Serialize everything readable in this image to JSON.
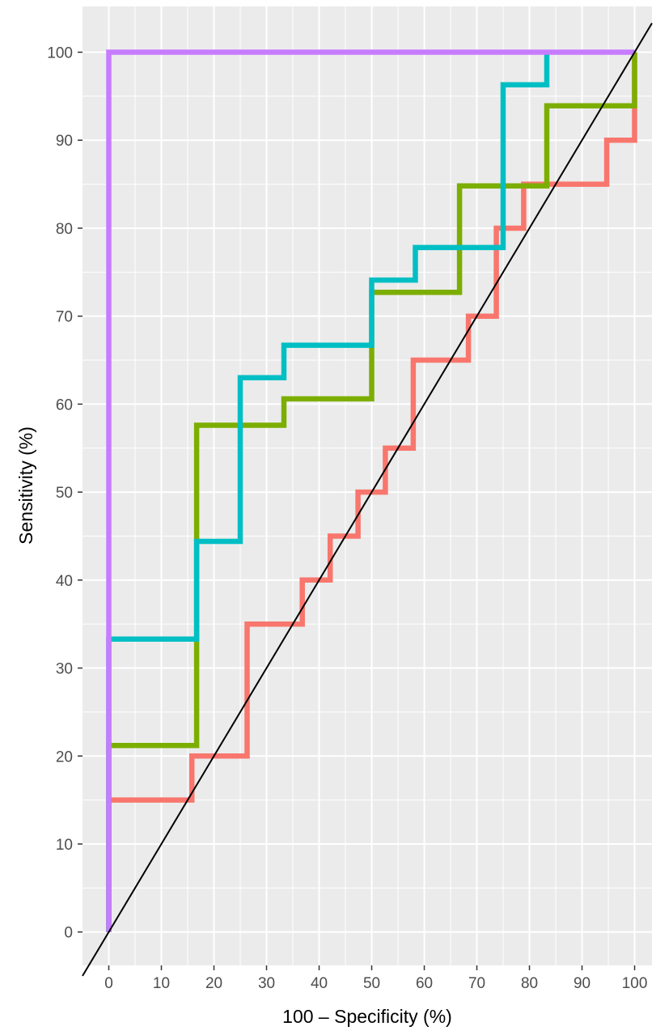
{
  "chart_data": {
    "type": "line",
    "title": "",
    "xlabel": "100 – Specificity (%)",
    "ylabel": "Sensitivity (%)",
    "xlim": [
      -5,
      103.3
    ],
    "ylim": [
      -3.8,
      105.2
    ],
    "x_ticks": [
      0,
      10,
      20,
      30,
      40,
      50,
      60,
      70,
      80,
      90,
      100
    ],
    "y_ticks": [
      0,
      10,
      20,
      30,
      40,
      50,
      60,
      70,
      80,
      90,
      100
    ],
    "grid": true,
    "legend": "none",
    "reference_line": {
      "from": [
        -5,
        -5
      ],
      "to": [
        103.3,
        103.3
      ],
      "color": "#000000"
    },
    "series": [
      {
        "color": "#F8766D",
        "x": [
          0,
          0,
          15.8,
          15.8,
          26.3,
          26.3,
          36.8,
          36.8,
          42.1,
          42.1,
          47.4,
          47.4,
          52.6,
          52.6,
          57.9,
          57.9,
          68.4,
          68.4,
          73.7,
          73.7,
          78.9,
          78.9,
          94.7,
          94.7,
          100,
          100
        ],
        "y": [
          0,
          15,
          15,
          20,
          20,
          35,
          35,
          40,
          40,
          45,
          45,
          50,
          50,
          55,
          55,
          65,
          65,
          70,
          70,
          80,
          80,
          85,
          85,
          90,
          90,
          100
        ]
      },
      {
        "color": "#7CAE00",
        "x": [
          0,
          0,
          16.7,
          16.7,
          33.3,
          33.3,
          50,
          50,
          66.7,
          66.7,
          83.3,
          83.3,
          100,
          100
        ],
        "y": [
          0,
          21.2,
          21.2,
          57.6,
          57.6,
          60.6,
          60.6,
          72.7,
          72.7,
          84.8,
          84.8,
          93.9,
          93.9,
          100
        ]
      },
      {
        "color": "#00BFC4",
        "x": [
          0,
          0,
          16.7,
          16.7,
          25,
          25,
          33.3,
          33.3,
          50,
          50,
          58.3,
          58.3,
          75,
          75,
          83.3,
          83.3
        ],
        "y": [
          0,
          33.3,
          33.3,
          44.4,
          44.4,
          63,
          63,
          66.7,
          66.7,
          74.1,
          74.1,
          77.8,
          77.8,
          96.3,
          96.3,
          100
        ]
      },
      {
        "color": "#C77CFF",
        "x": [
          0,
          0,
          100
        ],
        "y": [
          0,
          100,
          100
        ]
      }
    ]
  },
  "style": {
    "panel_bg": "#EBEBEB",
    "grid_color": "#FFFFFF",
    "tick_color": "#333333",
    "tick_text_color": "#4D4D4D"
  }
}
